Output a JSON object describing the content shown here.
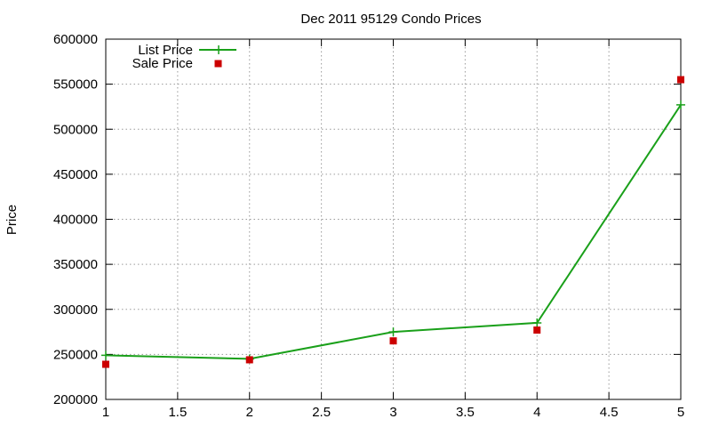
{
  "chart_data": {
    "type": "line",
    "title": "Dec 2011 95129 Condo Prices",
    "xlabel": "",
    "ylabel": "Price",
    "xlim": [
      1,
      5
    ],
    "ylim": [
      200000,
      600000
    ],
    "xticks": [
      1,
      1.5,
      2,
      2.5,
      3,
      3.5,
      4,
      4.5,
      5
    ],
    "xtick_labels": [
      "1",
      "1.5",
      "2",
      "2.5",
      "3",
      "3.5",
      "4",
      "4.5",
      "5"
    ],
    "yticks": [
      200000,
      250000,
      300000,
      350000,
      400000,
      450000,
      500000,
      550000,
      600000
    ],
    "ytick_labels": [
      "200000",
      "250000",
      "300000",
      "350000",
      "400000",
      "450000",
      "500000",
      "550000",
      "600000"
    ],
    "grid": true,
    "legend_position": "top-left",
    "series": [
      {
        "name": "List Price",
        "style": "line-with-plus",
        "color": "#1aa01a",
        "x": [
          1,
          2,
          3,
          4,
          5
        ],
        "values": [
          249000,
          245000,
          275000,
          285000,
          527000
        ]
      },
      {
        "name": "Sale Price",
        "style": "square-points",
        "color": "#cc0000",
        "x": [
          1,
          2,
          3,
          4,
          5
        ],
        "values": [
          239000,
          244000,
          265000,
          277000,
          555000
        ]
      }
    ]
  }
}
